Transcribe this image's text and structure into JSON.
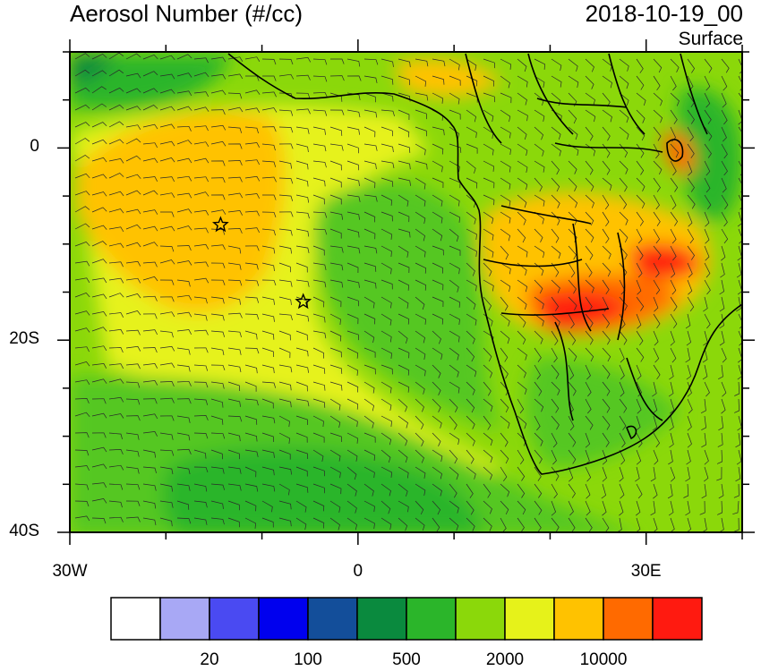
{
  "header": {
    "title": "Aerosol Number (#/cc)",
    "datetime": "2018-10-19_00",
    "level": "Surface"
  },
  "map": {
    "lat_ticks": [
      {
        "label": "0",
        "lat": 0
      },
      {
        "label": "20S",
        "lat": -20
      },
      {
        "label": "40S",
        "lat": -40
      }
    ],
    "lon_ticks": [
      {
        "label": "30W",
        "lon": -30
      },
      {
        "label": "0",
        "lon": 0
      },
      {
        "label": "30E",
        "lon": 30
      }
    ],
    "extent": {
      "lon_min": -30,
      "lon_max": 40,
      "lat_min": -40,
      "lat_max": 10
    },
    "markers": [
      {
        "name": "star-marker",
        "lon": -14.3,
        "lat": -8.0
      },
      {
        "name": "star-marker",
        "lon": -5.7,
        "lat": -16.0
      }
    ]
  },
  "colorbar": {
    "colors": [
      "#ffffff",
      "#a8a8f5",
      "#4a4af2",
      "#0000ee",
      "#134e9a",
      "#0a8a3e",
      "#2bb52a",
      "#8bd80a",
      "#e6f21a",
      "#ffc200",
      "#ff6a00",
      "#ff1a10"
    ],
    "labels": [
      "20",
      "100",
      "500",
      "2000",
      "10000"
    ]
  }
}
